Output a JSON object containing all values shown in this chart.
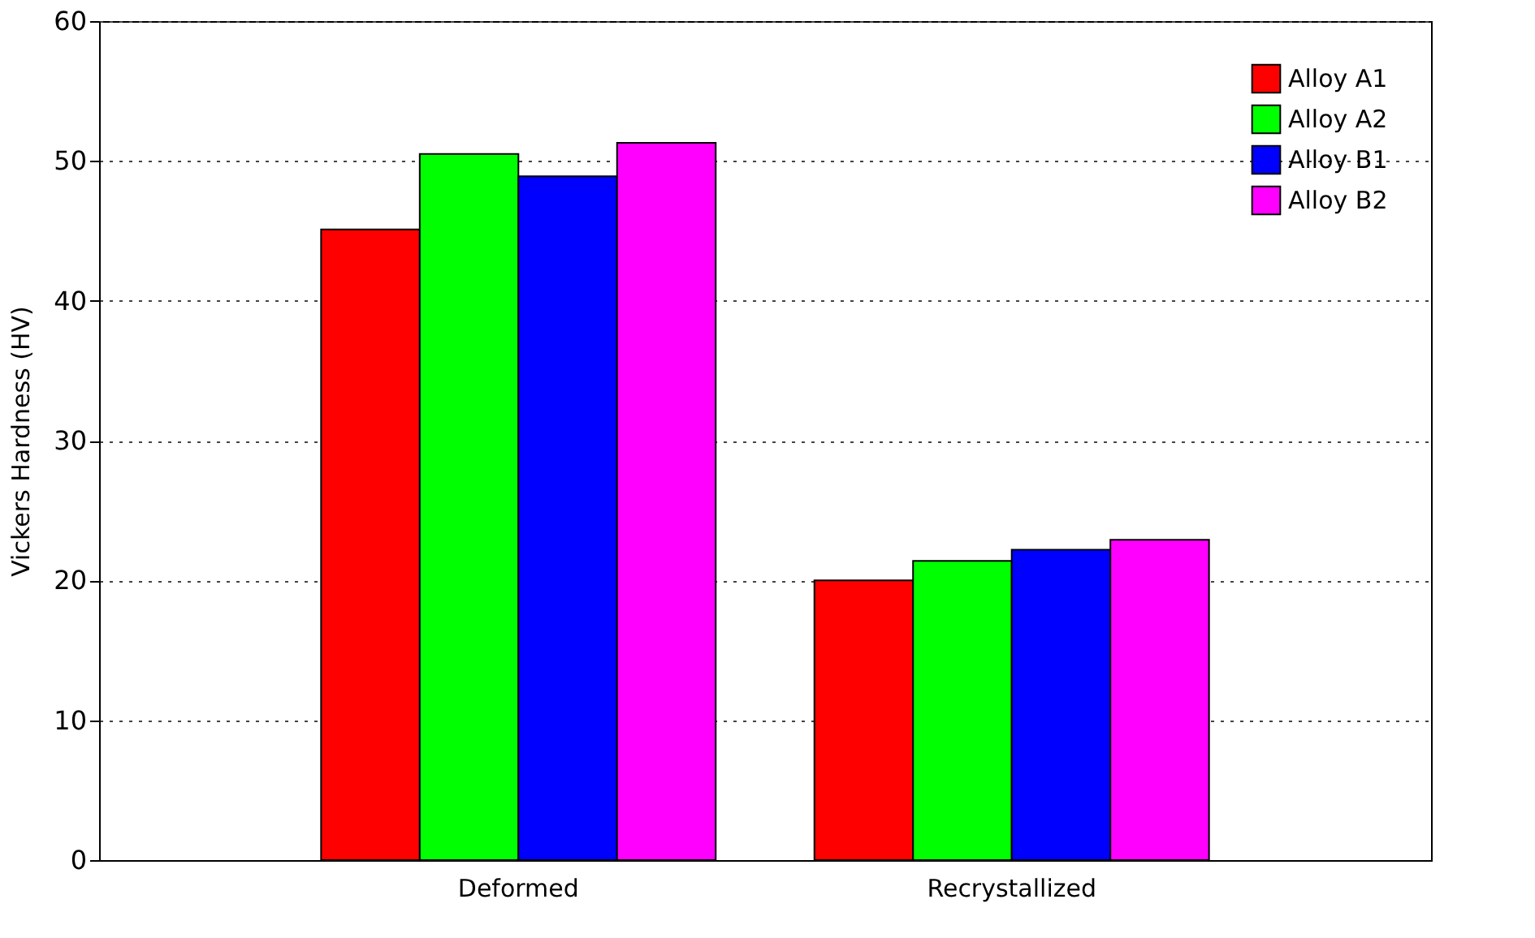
{
  "chart_data": {
    "type": "bar",
    "ylabel": "Vickers Hardness (HV)",
    "categories": [
      "Deformed",
      "Recrystallized"
    ],
    "ylim": [
      0,
      60
    ],
    "yticks": [
      0,
      10,
      20,
      30,
      40,
      50,
      60
    ],
    "grid": "y",
    "legend": "top right",
    "series": [
      {
        "name": "Alloy A1",
        "color": "#ff0000",
        "values": [
          45.1,
          20.0
        ]
      },
      {
        "name": "Alloy A2",
        "color": "#00ff00",
        "values": [
          50.5,
          21.4
        ]
      },
      {
        "name": "Alloy B1",
        "color": "#0000ff",
        "values": [
          48.9,
          22.2
        ]
      },
      {
        "name": "Alloy B2",
        "color": "#ff00ff",
        "values": [
          51.3,
          22.9
        ]
      }
    ]
  }
}
